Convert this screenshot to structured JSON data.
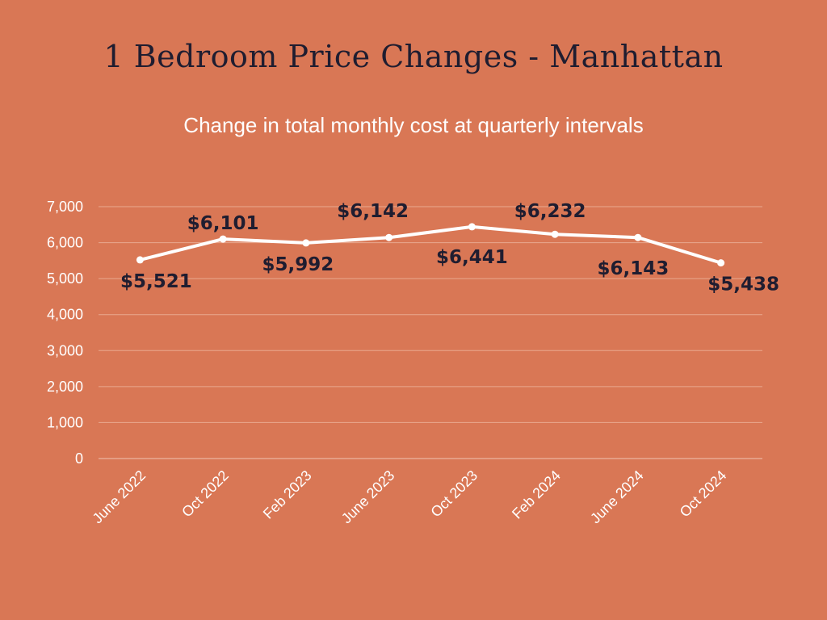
{
  "title": "1 Bedroom Price Changes - Manhattan",
  "subtitle": "Change in total monthly cost at quarterly intervals",
  "colors": {
    "background": "#d97755",
    "line": "#ffffff",
    "grid": "#e9a88f",
    "label": "#1f1d30",
    "tick": "#ffffff"
  },
  "chart_data": {
    "type": "line",
    "categories": [
      "June 2022",
      "Oct 2022",
      "Feb 2023",
      "June 2023",
      "Oct 2023",
      "Feb 2024",
      "June 2024",
      "Oct 2024"
    ],
    "values": [
      5521,
      6101,
      5992,
      6142,
      6441,
      6232,
      6143,
      5438
    ],
    "data_labels": [
      "$5,521",
      "$6,101",
      "$5,992",
      "$6,142",
      "$6,441",
      "$6,232",
      "$6,143",
      "$5,438"
    ],
    "yticks": [
      "0",
      "1,000",
      "2,000",
      "3,000",
      "4,000",
      "5,000",
      "6,000",
      "7,000"
    ],
    "ylim": [
      0,
      7000
    ],
    "grid": true,
    "legend": "none"
  }
}
